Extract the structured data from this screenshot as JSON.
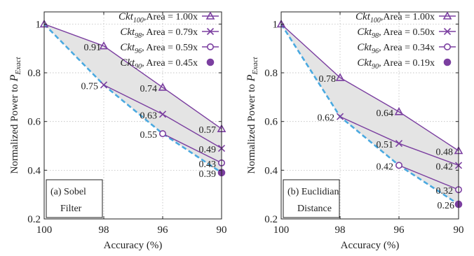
{
  "colors": {
    "series": "#7b3fa0",
    "lower_bound": "#4aa9e0",
    "shade": "#e4e4e4",
    "grid": "#bdbdbd",
    "frame": "#222222"
  },
  "chart_data": [
    {
      "type": "line",
      "panel_label_lines": [
        "(a) Sobel",
        "Filter"
      ],
      "xlabel": "Accuracy (%)",
      "ylabel_main": "Normalized Power to ",
      "ylabel_var": "P",
      "ylabel_sub": "Exact",
      "x_ticks": [
        "100",
        "98",
        "96",
        "90"
      ],
      "y_ticks": [
        "0.2",
        "0.4",
        "0.6",
        "0.8",
        "1"
      ],
      "ylim": [
        0.2,
        1.05
      ],
      "grid": true,
      "legend_position": "top-right",
      "series": [
        {
          "name_ckt": "Ckt",
          "name_sub": "100",
          "name_rest": ",Area = 1.00x",
          "marker": "triangle",
          "x": [
            "100",
            "98",
            "96",
            "90"
          ],
          "y": [
            1.0,
            0.91,
            0.74,
            0.57
          ],
          "labels": [
            "",
            "0.91",
            "0.74",
            "0.57"
          ]
        },
        {
          "name_ckt": "Ckt",
          "name_sub": "98",
          "name_rest": ", Area = 0.79x",
          "marker": "cross",
          "x": [
            "98",
            "96",
            "90"
          ],
          "y": [
            0.75,
            0.63,
            0.49
          ],
          "labels": [
            "0.75",
            "0.63",
            "0.49"
          ]
        },
        {
          "name_ckt": "Ckt",
          "name_sub": "96",
          "name_rest": ", Area = 0.59x",
          "marker": "circle",
          "x": [
            "96",
            "90"
          ],
          "y": [
            0.55,
            0.43
          ],
          "labels": [
            "0.55",
            "0.43"
          ]
        },
        {
          "name_ckt": "Ckt",
          "name_sub": "90",
          "name_rest": ", Area = 0.45x",
          "marker": "dot",
          "x": [
            "90"
          ],
          "y": [
            0.39
          ],
          "labels": [
            "0.39"
          ]
        }
      ],
      "lower_bound": {
        "x": [
          "100",
          "98",
          "96",
          "90"
        ],
        "y": [
          1.0,
          0.75,
          0.55,
          0.39
        ]
      }
    },
    {
      "type": "line",
      "panel_label_lines": [
        "(b) Euclidian",
        "Distance"
      ],
      "xlabel": "Accuracy (%)",
      "ylabel_main": "Normalized Power to ",
      "ylabel_var": "P",
      "ylabel_sub": "Exact",
      "x_ticks": [
        "100",
        "98",
        "96",
        "90"
      ],
      "y_ticks": [
        "0.2",
        "0.4",
        "0.6",
        "0.8",
        "1"
      ],
      "ylim": [
        0.2,
        1.05
      ],
      "grid": true,
      "legend_position": "top-right",
      "series": [
        {
          "name_ckt": "Ckt",
          "name_sub": "100",
          "name_rest": ",Area = 1.00x",
          "marker": "triangle",
          "x": [
            "100",
            "98",
            "96",
            "90"
          ],
          "y": [
            1.0,
            0.78,
            0.64,
            0.48
          ],
          "labels": [
            "",
            "0.78",
            "0.64",
            "0.48"
          ]
        },
        {
          "name_ckt": "Ckt",
          "name_sub": "98",
          "name_rest": ", Area = 0.50x",
          "marker": "cross",
          "x": [
            "98",
            "96",
            "90"
          ],
          "y": [
            0.62,
            0.51,
            0.42
          ],
          "labels": [
            "0.62",
            "0.51",
            "0.42"
          ]
        },
        {
          "name_ckt": "Ckt",
          "name_sub": "96",
          "name_rest": ", Area = 0.34x",
          "marker": "circle",
          "x": [
            "96",
            "90"
          ],
          "y": [
            0.42,
            0.32
          ],
          "labels": [
            "0.42",
            "0.32"
          ]
        },
        {
          "name_ckt": "Ckt",
          "name_sub": "90",
          "name_rest": ", Area = 0.19x",
          "marker": "dot",
          "x": [
            "90"
          ],
          "y": [
            0.26
          ],
          "labels": [
            "0.26"
          ]
        }
      ],
      "lower_bound": {
        "x": [
          "100",
          "98",
          "96",
          "90"
        ],
        "y": [
          1.0,
          0.62,
          0.42,
          0.26
        ]
      }
    }
  ]
}
